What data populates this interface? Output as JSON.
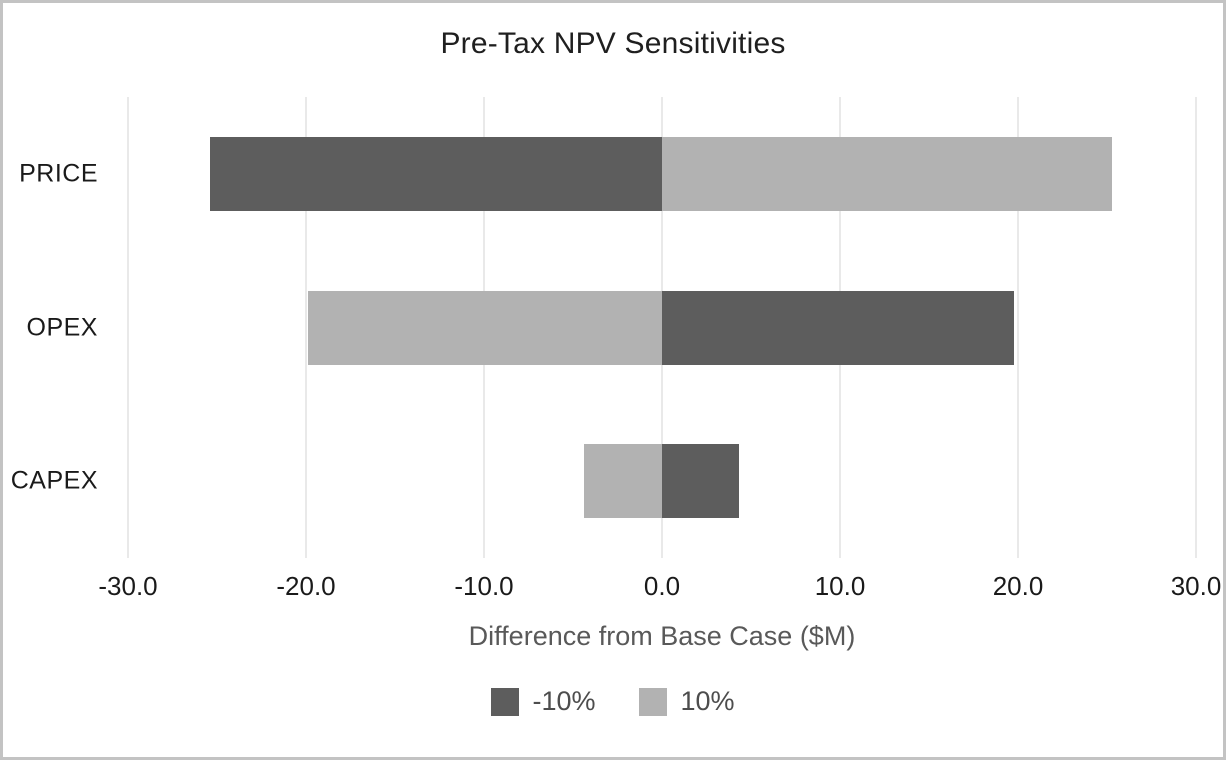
{
  "chart": {
    "title": "Pre-Tax NPV Sensitivities"
  },
  "chart_data": {
    "type": "bar",
    "orientation": "horizontal",
    "title": "Pre-Tax NPV Sensitivities",
    "categories": [
      "PRICE",
      "OPEX",
      "CAPEX"
    ],
    "series": [
      {
        "name": "-10%",
        "color": "#5d5d5d",
        "values": [
          -25.4,
          19.8,
          4.3
        ]
      },
      {
        "name": "10%",
        "color": "#b2b2b2",
        "values": [
          25.3,
          -19.9,
          -4.4
        ]
      }
    ],
    "xlabel": "Difference from Base Case ($M)",
    "ylabel": "",
    "xlim": [
      -30,
      30
    ],
    "xticks": [
      -30,
      -20,
      -10,
      0,
      10,
      20,
      30
    ],
    "xtick_labels": [
      "-30.0",
      "-20.0",
      "-10.0",
      "0.0",
      "10.0",
      "20.0",
      "30.0"
    ],
    "grid": "vertical",
    "legend_position": "bottom",
    "colors": {
      "background": "#ffffff",
      "border": "#c3c3c3",
      "gridline": "#e9e9e9",
      "title_text": "#1f1f1f",
      "tick_text": "#1a1a1a",
      "axis_title_text": "#595959",
      "legend_text": "#4d4d4d"
    }
  }
}
